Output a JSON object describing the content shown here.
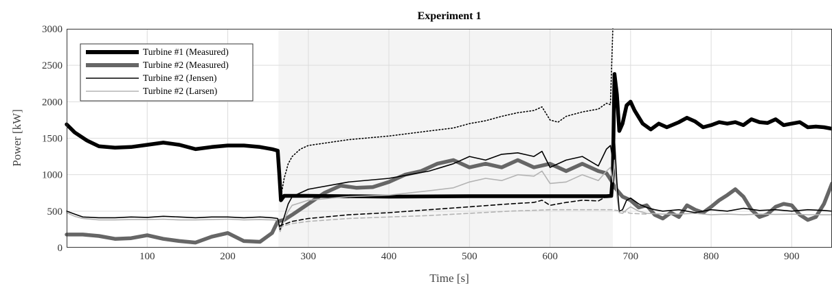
{
  "chart_data": {
    "type": "line",
    "title": "Experiment 1",
    "xlabel": "Time [s]",
    "ylabel": "Power [kW]",
    "xlim": [
      0,
      950
    ],
    "ylim": [
      0,
      3000
    ],
    "xticks": [
      100,
      200,
      300,
      400,
      500,
      600,
      700,
      800,
      900
    ],
    "xtick_labels": [
      "100",
      "200",
      "300",
      "400",
      "500",
      "600",
      "700",
      "800",
      "900"
    ],
    "yticks": [
      0,
      500,
      1000,
      1500,
      2000,
      2500,
      3000
    ],
    "ytick_labels": [
      "0",
      "500",
      "1000",
      "1500",
      "2000",
      "2500",
      "3000"
    ],
    "grid": true,
    "legend_position": "top-left",
    "shaded_region": {
      "x_start": 263,
      "x_end": 678,
      "color": "#f4f4f4"
    },
    "series": [
      {
        "name": "Turbine #1 (Measured)",
        "color": "#000000",
        "style": "solid",
        "weight": "heavy",
        "in_legend": true,
        "x": [
          0,
          10,
          25,
          40,
          60,
          80,
          100,
          120,
          140,
          160,
          180,
          200,
          220,
          240,
          255,
          262,
          264,
          266,
          270,
          300,
          400,
          500,
          600,
          670,
          676,
          678,
          680,
          683,
          686,
          690,
          695,
          700,
          705,
          715,
          725,
          735,
          745,
          760,
          770,
          780,
          790,
          800,
          810,
          820,
          830,
          840,
          850,
          860,
          870,
          880,
          890,
          900,
          910,
          920,
          930,
          940,
          950
        ],
        "y": [
          1690,
          1580,
          1470,
          1390,
          1370,
          1380,
          1410,
          1440,
          1410,
          1350,
          1380,
          1400,
          1400,
          1380,
          1350,
          1330,
          1000,
          650,
          710,
          710,
          700,
          705,
          705,
          705,
          710,
          1000,
          2380,
          2100,
          1600,
          1700,
          1950,
          2000,
          1880,
          1700,
          1620,
          1700,
          1650,
          1720,
          1780,
          1730,
          1650,
          1680,
          1720,
          1700,
          1720,
          1680,
          1760,
          1720,
          1710,
          1760,
          1680,
          1700,
          1720,
          1650,
          1660,
          1650,
          1630
        ]
      },
      {
        "name": "Turbine #2 (Measured)",
        "color": "#666666",
        "style": "solid",
        "weight": "heavy",
        "in_legend": true,
        "x": [
          0,
          20,
          40,
          60,
          80,
          100,
          120,
          140,
          160,
          180,
          200,
          220,
          240,
          255,
          262,
          270,
          280,
          300,
          320,
          340,
          360,
          380,
          400,
          420,
          440,
          460,
          480,
          500,
          520,
          540,
          560,
          580,
          600,
          620,
          640,
          660,
          670,
          676,
          680,
          690,
          700,
          710,
          720,
          730,
          740,
          750,
          760,
          770,
          780,
          790,
          800,
          810,
          820,
          830,
          840,
          850,
          860,
          870,
          880,
          890,
          900,
          910,
          920,
          930,
          940,
          950
        ],
        "y": [
          180,
          180,
          160,
          120,
          130,
          170,
          120,
          90,
          70,
          150,
          200,
          90,
          80,
          200,
          360,
          380,
          450,
          600,
          750,
          850,
          820,
          830,
          900,
          1000,
          1050,
          1150,
          1200,
          1100,
          1150,
          1100,
          1200,
          1100,
          1150,
          1050,
          1150,
          1050,
          1020,
          920,
          830,
          700,
          650,
          550,
          580,
          450,
          400,
          480,
          420,
          580,
          520,
          480,
          560,
          650,
          720,
          800,
          700,
          520,
          420,
          460,
          560,
          600,
          580,
          450,
          380,
          420,
          600,
          880
        ]
      },
      {
        "name": "Turbine #2 (Jensen)",
        "color": "#000000",
        "style": "solid",
        "weight": "thin",
        "in_legend": true,
        "x": [
          0,
          10,
          20,
          40,
          60,
          80,
          100,
          120,
          140,
          160,
          180,
          200,
          220,
          240,
          255,
          262,
          265,
          270,
          275,
          280,
          300,
          350,
          400,
          450,
          480,
          500,
          520,
          540,
          560,
          580,
          590,
          600,
          620,
          640,
          660,
          670,
          675,
          678,
          680,
          683,
          686,
          690,
          695,
          700,
          710,
          720,
          730,
          740,
          760,
          780,
          800,
          820,
          840,
          860,
          880,
          900,
          920,
          940,
          950
        ],
        "y": [
          500,
          460,
          420,
          410,
          410,
          420,
          415,
          430,
          420,
          410,
          420,
          420,
          410,
          420,
          410,
          400,
          250,
          420,
          600,
          700,
          800,
          900,
          950,
          1050,
          1150,
          1250,
          1200,
          1280,
          1300,
          1250,
          1320,
          1100,
          1200,
          1250,
          1120,
          1350,
          1400,
          1200,
          1500,
          900,
          500,
          520,
          650,
          680,
          600,
          550,
          520,
          500,
          520,
          480,
          520,
          500,
          540,
          510,
          520,
          500,
          520,
          510,
          500
        ]
      },
      {
        "name": "Turbine #2 (Larsen)",
        "color": "#b3b3b3",
        "style": "solid",
        "weight": "thin",
        "in_legend": true,
        "x": [
          0,
          10,
          20,
          40,
          60,
          80,
          100,
          120,
          140,
          160,
          180,
          200,
          220,
          240,
          255,
          262,
          265,
          270,
          275,
          280,
          300,
          350,
          400,
          450,
          480,
          500,
          520,
          540,
          560,
          580,
          590,
          600,
          620,
          640,
          660,
          670,
          675,
          678,
          680,
          683,
          686,
          690,
          695,
          700,
          710,
          720,
          740,
          760,
          780,
          800,
          820,
          840,
          860,
          880,
          900,
          920,
          940,
          950
        ],
        "y": [
          480,
          430,
          400,
          380,
          380,
          385,
          385,
          390,
          380,
          380,
          385,
          390,
          380,
          385,
          380,
          375,
          220,
          380,
          500,
          580,
          650,
          700,
          720,
          780,
          820,
          900,
          950,
          920,
          1000,
          980,
          1050,
          880,
          900,
          1000,
          920,
          1050,
          1100,
          900,
          1200,
          700,
          480,
          470,
          520,
          560,
          500,
          470,
          460,
          460,
          470,
          450,
          460,
          450,
          460,
          455,
          460,
          450,
          450,
          450
        ]
      },
      {
        "name": "",
        "color": "#000000",
        "style": "dotted",
        "weight": "thin",
        "in_legend": false,
        "x": [
          264,
          266,
          270,
          275,
          280,
          290,
          300,
          350,
          400,
          450,
          480,
          500,
          520,
          540,
          560,
          580,
          590,
          600,
          610,
          620,
          640,
          660,
          670,
          675,
          678
        ],
        "y": [
          800,
          700,
          950,
          1150,
          1250,
          1350,
          1400,
          1480,
          1530,
          1600,
          1640,
          1700,
          1740,
          1800,
          1850,
          1880,
          1930,
          1750,
          1720,
          1800,
          1860,
          1900,
          1980,
          1960,
          3000
        ]
      },
      {
        "name": "",
        "color": "#000000",
        "style": "dashed",
        "weight": "thin",
        "in_legend": false,
        "x": [
          264,
          270,
          280,
          300,
          350,
          400,
          450,
          500,
          550,
          580,
          590,
          600,
          610,
          620,
          640,
          660,
          670,
          676
        ],
        "y": [
          300,
          320,
          360,
          400,
          450,
          480,
          520,
          560,
          600,
          620,
          650,
          580,
          600,
          620,
          650,
          640,
          700,
          720
        ]
      },
      {
        "name": "",
        "color": "#b3b3b3",
        "style": "dashed",
        "weight": "thin",
        "in_legend": false,
        "x": [
          264,
          270,
          280,
          300,
          350,
          400,
          450,
          500,
          550,
          600,
          650,
          676,
          690,
          700,
          720
        ],
        "y": [
          270,
          300,
          330,
          360,
          400,
          420,
          440,
          470,
          500,
          520,
          520,
          520,
          500,
          470,
          460
        ]
      }
    ]
  }
}
